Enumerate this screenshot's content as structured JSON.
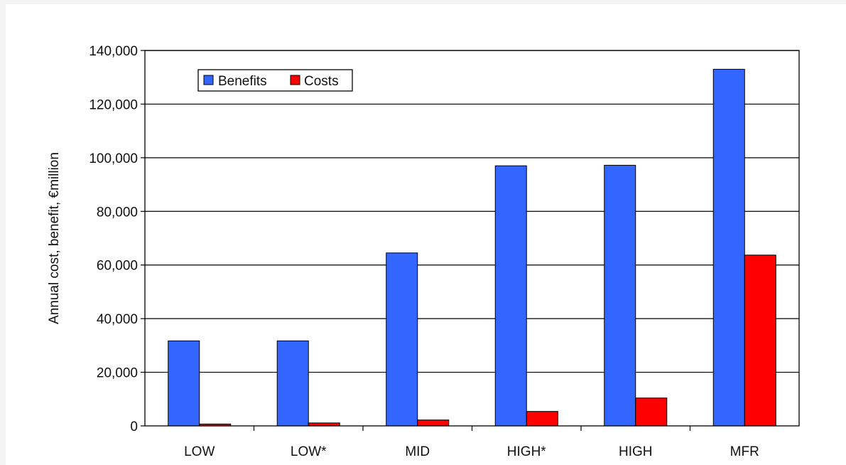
{
  "chart_data": {
    "type": "bar",
    "title": "",
    "xlabel": "",
    "ylabel": "Annual cost, benefit, €million",
    "categories": [
      "LOW",
      "LOW*",
      "MID",
      "HIGH*",
      "HIGH",
      "MFR"
    ],
    "series": [
      {
        "name": "Benefits",
        "color": "#3366ff",
        "values": [
          31700,
          31700,
          64500,
          97000,
          97200,
          133000
        ]
      },
      {
        "name": "Costs",
        "color": "#ff0000",
        "values": [
          700,
          1100,
          2200,
          5400,
          10400,
          63700
        ]
      }
    ],
    "ylim": [
      0,
      140000
    ],
    "yticks": [
      0,
      20000,
      40000,
      60000,
      80000,
      100000,
      120000,
      140000
    ],
    "ytick_labels": [
      "0",
      "20,000",
      "40,000",
      "60,000",
      "80,000",
      "100,000",
      "120,000",
      "140,000"
    ],
    "grid": true,
    "legend": "top-left"
  }
}
